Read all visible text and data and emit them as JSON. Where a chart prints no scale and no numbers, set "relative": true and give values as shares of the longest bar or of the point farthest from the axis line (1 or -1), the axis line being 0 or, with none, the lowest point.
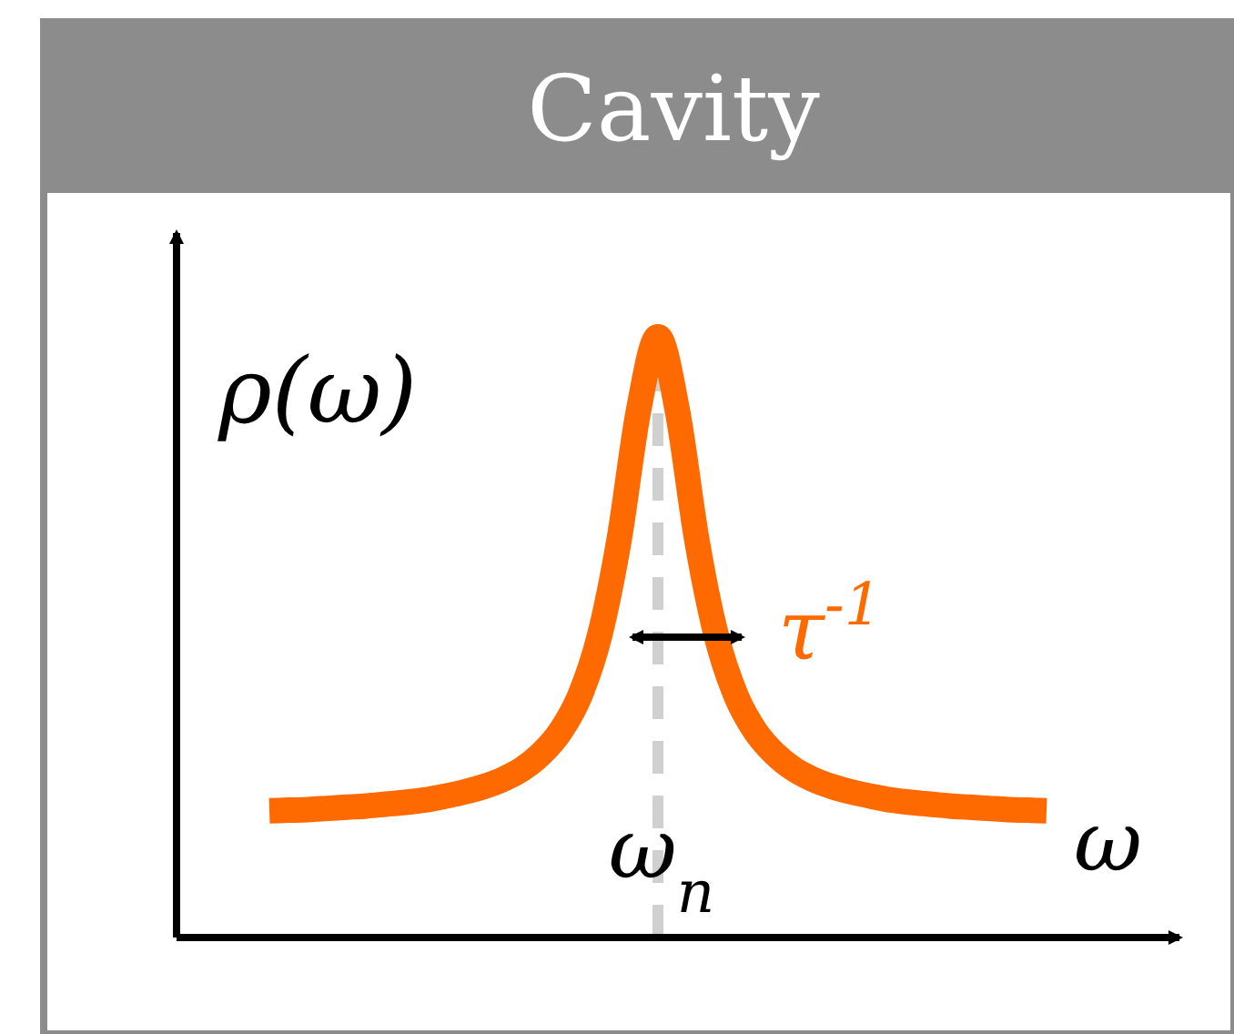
{
  "chart_data": {
    "type": "line",
    "title": "Cavity",
    "xlabel": "ω",
    "ylabel": "ρ(ω)",
    "relative": true,
    "categories": [
      null,
      null,
      null,
      null,
      null,
      null,
      null,
      null,
      null,
      null,
      null,
      null,
      null,
      null,
      null,
      null,
      null,
      null,
      null,
      null,
      null,
      null,
      null,
      null,
      null,
      null,
      null,
      null,
      null,
      null,
      null,
      null,
      null,
      null,
      null,
      null,
      null,
      null,
      null,
      null,
      null
    ],
    "series": [
      {
        "color": "#ff6a00",
        "values": [
          0.211,
          0.212,
          0.213,
          0.215,
          0.217,
          0.219,
          0.222,
          0.225,
          0.229,
          0.235,
          0.242,
          0.251,
          0.263,
          0.28,
          0.306,
          0.344,
          0.404,
          0.503,
          0.662,
          0.877,
          1.0,
          0.877,
          0.662,
          0.503,
          0.404,
          0.344,
          0.306,
          0.28,
          0.263,
          0.251,
          0.242,
          0.235,
          0.229,
          0.225,
          0.222,
          0.219,
          0.217,
          0.215,
          0.213,
          0.212,
          0.211
        ]
      }
    ],
    "annotations": [
      "ω$_{n}$",
      "τ$^{-1}$"
    ],
    "line_style": "solid",
    "marker": "none"
  }
}
